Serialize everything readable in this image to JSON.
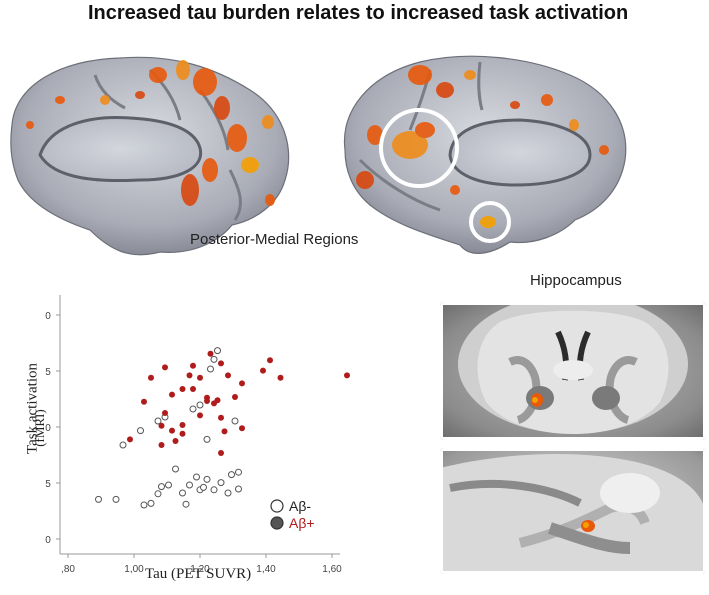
{
  "title": "Increased tau burden relates to increased task activation",
  "brain_panel": {
    "label": "Posterior-Medial Regions"
  },
  "hippocampus_panel": {
    "label": "Hippocampus"
  },
  "colors": {
    "amyloid_negative": "#ffffff",
    "amyloid_positive": "#b01c1c",
    "activation": "#e8590c",
    "brain_surface": "#b9bcc6"
  },
  "chart_data": {
    "type": "scatter",
    "xlabel": "Tau (PET SUVR)",
    "ylabel": "Task activation",
    "ylabel_unit": "(fMRI)",
    "xlim": [
      0.8,
      1.6
    ],
    "ylim": [
      -0.25,
      0.05
    ],
    "x_ticks": [
      ",80",
      "1,00",
      "1,20",
      "1,40",
      "1,60"
    ],
    "y_ticks": [
      "0",
      "5",
      "0",
      "5",
      "0"
    ],
    "grid": false,
    "legend_position": "bottom-right",
    "series": [
      {
        "name": "Aβ-",
        "marker": "open-circle",
        "points": [
          [
            0.91,
            -0.193
          ],
          [
            0.96,
            -0.193
          ],
          [
            1.06,
            -0.198
          ],
          [
            1.08,
            -0.186
          ],
          [
            1.09,
            -0.177
          ],
          [
            1.11,
            -0.175
          ],
          [
            1.13,
            -0.155
          ],
          [
            1.15,
            -0.185
          ],
          [
            1.16,
            -0.199
          ],
          [
            1.17,
            -0.175
          ],
          [
            1.19,
            -0.165
          ],
          [
            1.2,
            -0.181
          ],
          [
            1.22,
            -0.168
          ],
          [
            1.24,
            -0.181
          ],
          [
            1.26,
            -0.172
          ],
          [
            1.28,
            -0.185
          ],
          [
            1.29,
            -0.162
          ],
          [
            1.31,
            -0.159
          ],
          [
            1.31,
            -0.18
          ],
          [
            1.25,
            -0.007
          ],
          [
            1.24,
            -0.018
          ],
          [
            1.23,
            -0.03
          ],
          [
            1.2,
            -0.075
          ],
          [
            1.22,
            -0.118
          ],
          [
            1.03,
            -0.107
          ],
          [
            1.1,
            -0.09
          ],
          [
            1.08,
            -0.095
          ],
          [
            1.18,
            -0.08
          ],
          [
            1.3,
            -0.095
          ],
          [
            0.98,
            -0.125
          ],
          [
            1.21,
            -0.178
          ],
          [
            1.04,
            -0.2
          ]
        ]
      },
      {
        "name": "Aβ+",
        "marker": "filled-circle",
        "points": [
          [
            1.62,
            -0.038
          ],
          [
            1.4,
            -0.019
          ],
          [
            1.43,
            -0.041
          ],
          [
            1.38,
            -0.032
          ],
          [
            1.32,
            -0.048
          ],
          [
            1.28,
            -0.038
          ],
          [
            1.26,
            -0.023
          ],
          [
            1.23,
            -0.011
          ],
          [
            1.2,
            -0.041
          ],
          [
            1.18,
            -0.026
          ],
          [
            1.18,
            -0.055
          ],
          [
            1.17,
            -0.038
          ],
          [
            1.15,
            -0.055
          ],
          [
            1.22,
            -0.066
          ],
          [
            1.25,
            -0.069
          ],
          [
            1.12,
            -0.062
          ],
          [
            1.1,
            -0.028
          ],
          [
            1.06,
            -0.041
          ],
          [
            1.09,
            -0.101
          ],
          [
            1.12,
            -0.107
          ],
          [
            1.15,
            -0.111
          ],
          [
            1.2,
            -0.088
          ],
          [
            1.22,
            -0.07
          ],
          [
            1.26,
            -0.091
          ],
          [
            1.32,
            -0.104
          ],
          [
            1.04,
            -0.071
          ],
          [
            1.1,
            -0.085
          ],
          [
            1.0,
            -0.118
          ],
          [
            1.15,
            -0.1
          ],
          [
            1.27,
            -0.108
          ],
          [
            1.24,
            -0.073
          ],
          [
            1.13,
            -0.12
          ],
          [
            1.3,
            -0.065
          ],
          [
            1.09,
            -0.125
          ],
          [
            1.26,
            -0.135
          ]
        ]
      }
    ]
  }
}
